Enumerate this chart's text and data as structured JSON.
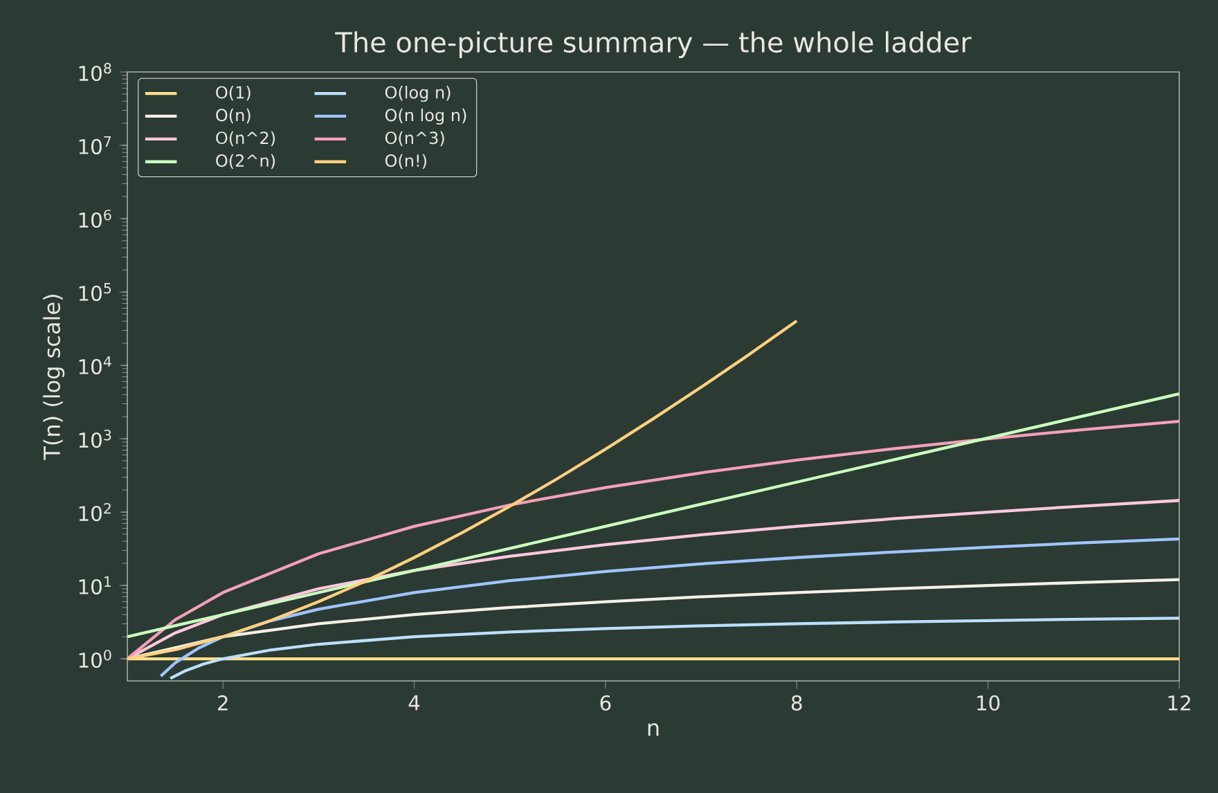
{
  "chart_data": {
    "type": "line",
    "title": "The one-picture summary — the whole ladder",
    "xlabel": "n",
    "ylabel": "T(n) (log scale)",
    "log": "y",
    "xlim": [
      1,
      12
    ],
    "ylim": [
      0.5,
      100000000
    ],
    "xticks": [
      2,
      4,
      6,
      8,
      10,
      12
    ],
    "yticks": [
      {
        "value": 1,
        "label": "10$^{0}$"
      },
      {
        "value": 10,
        "label": "10$^{1}$"
      },
      {
        "value": 100,
        "label": "10$^{2}$"
      },
      {
        "value": 1000,
        "label": "10$^{3}$"
      },
      {
        "value": 10000,
        "label": "10$^{4}$"
      },
      {
        "value": 100000,
        "label": "10$^{5}$"
      },
      {
        "value": 1000000,
        "label": "10$^{6}$"
      },
      {
        "value": 10000000,
        "label": "10$^{7}$"
      },
      {
        "value": 100000000,
        "label": "10$^{8}$"
      }
    ],
    "legend": "top left",
    "grid": false,
    "marker": "none",
    "line_style": "solid",
    "series": [
      {
        "name": "O(1)",
        "color": "#ffe08a",
        "x": [
          1,
          12
        ],
        "values": [
          1,
          1
        ]
      },
      {
        "name": "O(log n)",
        "color": "#bde0fe",
        "x": [
          1.45,
          1.6,
          1.8,
          2,
          2.5,
          3,
          4,
          5,
          6,
          7,
          8,
          9,
          10,
          11,
          12
        ],
        "values": [
          0.54,
          0.68,
          0.85,
          1,
          1.32,
          1.58,
          2,
          2.32,
          2.58,
          2.81,
          3,
          3.17,
          3.32,
          3.46,
          3.58
        ]
      },
      {
        "name": "O(n)",
        "color": "#f5f0e6",
        "x": [
          1,
          2,
          3,
          4,
          5,
          6,
          7,
          8,
          9,
          10,
          11,
          12
        ],
        "values": [
          1,
          2,
          3,
          4,
          5,
          6,
          7,
          8,
          9,
          10,
          11,
          12
        ]
      },
      {
        "name": "O(n log n)",
        "color": "#a0c4ff",
        "x": [
          1.35,
          1.5,
          1.75,
          2,
          2.5,
          3,
          4,
          5,
          6,
          7,
          8,
          9,
          10,
          11,
          12
        ],
        "values": [
          0.58,
          0.88,
          1.41,
          2,
          3.3,
          4.75,
          8,
          11.6,
          15.5,
          19.7,
          24,
          28.5,
          33.2,
          38.1,
          43
        ]
      },
      {
        "name": "O(n^2)",
        "color": "#ffc8dd",
        "x": [
          1,
          1.5,
          2,
          3,
          4,
          5,
          6,
          7,
          8,
          9,
          10,
          11,
          12
        ],
        "values": [
          1,
          2.25,
          4,
          9,
          16,
          25,
          36,
          49,
          64,
          81,
          100,
          121,
          144
        ]
      },
      {
        "name": "O(n^3)",
        "color": "#f4a0b8",
        "x": [
          1,
          1.5,
          2,
          3,
          4,
          5,
          6,
          7,
          8,
          9,
          10,
          11,
          12
        ],
        "values": [
          1,
          3.4,
          8,
          27,
          64,
          125,
          216,
          343,
          512,
          729,
          1000,
          1331,
          1728
        ]
      },
      {
        "name": "O(2^n)",
        "color": "#caffbf",
        "x": [
          1,
          2,
          3,
          4,
          5,
          6,
          7,
          8,
          9,
          10,
          11,
          12
        ],
        "values": [
          2,
          4,
          8,
          16,
          32,
          64,
          128,
          256,
          512,
          1024,
          2048,
          4096
        ]
      },
      {
        "name": "O(n!)",
        "color": "#ffd07f",
        "x": [
          1,
          1.5,
          2,
          2.5,
          3,
          3.5,
          4,
          4.5,
          5,
          5.5,
          6,
          6.5,
          7,
          7.5,
          8
        ],
        "values": [
          1,
          1.33,
          2,
          3.32,
          6,
          11.6,
          24,
          52.3,
          120,
          287,
          720,
          1872,
          5040,
          14034,
          40320
        ]
      }
    ]
  }
}
